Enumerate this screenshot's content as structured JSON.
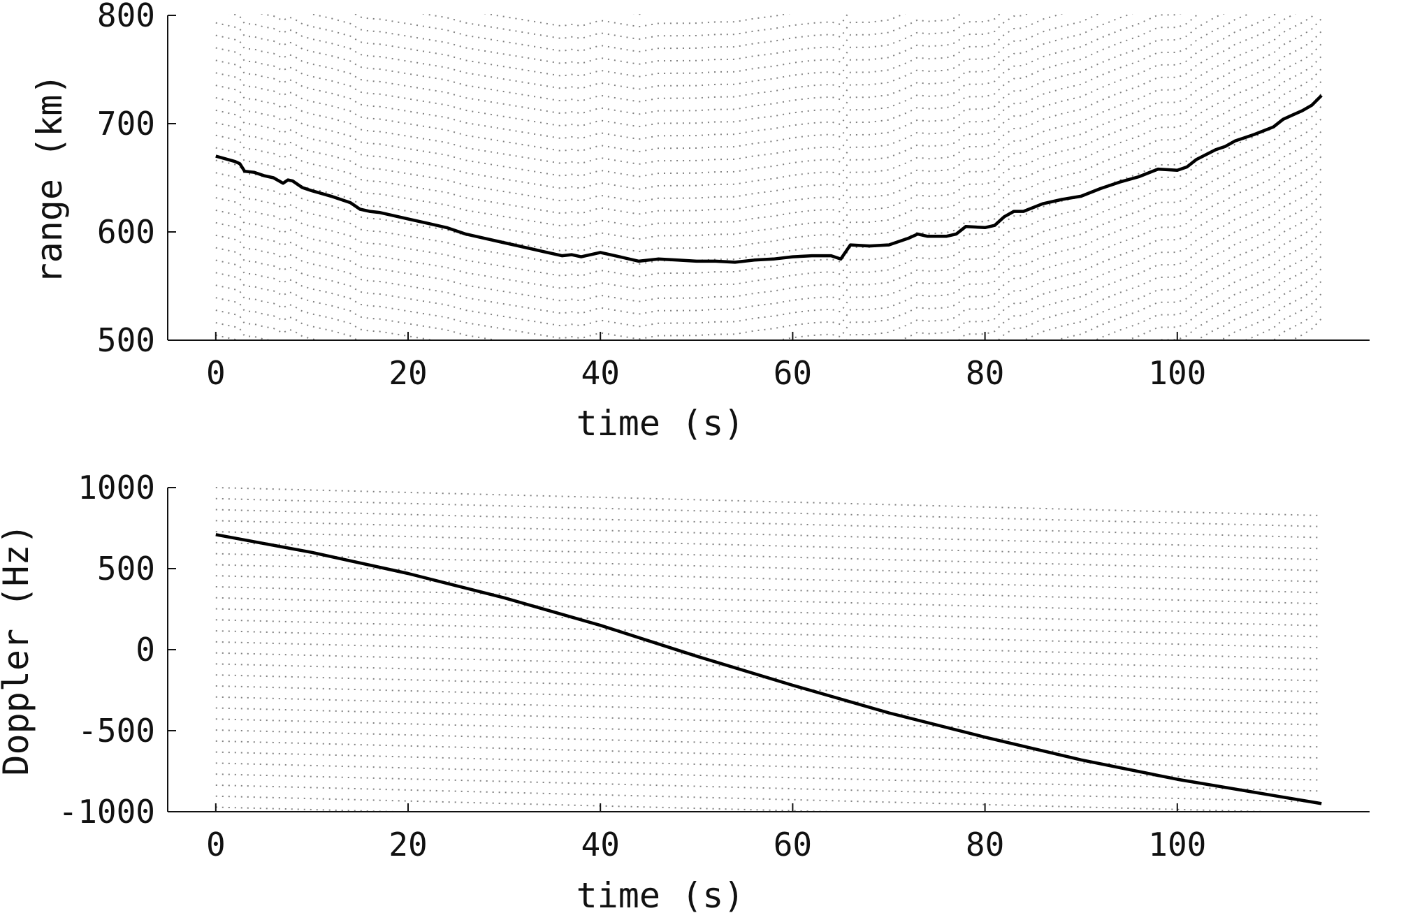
{
  "chart_data": [
    {
      "type": "line",
      "xlabel": "time (s)",
      "ylabel": "range (km)",
      "xlim": [
        -5,
        120
      ],
      "ylim": [
        500,
        800
      ],
      "x_ticks": [
        0,
        20,
        40,
        60,
        80,
        100
      ],
      "y_ticks": [
        500,
        600,
        700,
        800
      ],
      "x_tick_labels": [
        "0",
        "20",
        "40",
        "60",
        "80",
        "100"
      ],
      "y_tick_labels": [
        "500",
        "600",
        "700",
        "800"
      ],
      "grid": false,
      "series": [
        {
          "style": "solid",
          "color": "#000000",
          "x": [
            0,
            2,
            2.5,
            3,
            4,
            5,
            6,
            7,
            7.5,
            8,
            9,
            10,
            12,
            14,
            15,
            16,
            17,
            18,
            20,
            22,
            24,
            26,
            28,
            30,
            32,
            34,
            36,
            37,
            38,
            40,
            42,
            44,
            46,
            48,
            50,
            52,
            54,
            56,
            58,
            60,
            62,
            64,
            65,
            66,
            68,
            70,
            72,
            73,
            74,
            76,
            77,
            78,
            80,
            81,
            82,
            83,
            84,
            86,
            88,
            90,
            92,
            94,
            96,
            98,
            100,
            101,
            102,
            104,
            105,
            106,
            108,
            110,
            111,
            112,
            113,
            114,
            115
          ],
          "y": [
            670,
            665,
            663,
            656,
            655,
            652,
            650,
            645,
            648,
            647,
            641,
            638,
            633,
            627,
            621,
            619,
            618,
            616,
            612,
            608,
            604,
            598,
            594,
            590,
            586,
            582,
            578,
            579,
            577,
            581,
            577,
            573,
            575,
            574,
            573,
            573,
            572,
            574,
            575,
            577,
            578,
            578,
            575,
            588,
            587,
            588,
            594,
            598,
            596,
            596,
            598,
            605,
            604,
            606,
            614,
            619,
            619,
            626,
            630,
            633,
            640,
            646,
            651,
            658,
            657,
            660,
            667,
            676,
            679,
            684,
            690,
            697,
            704,
            708,
            712,
            717,
            726
          ]
        }
      ],
      "alias_bands": {
        "style": "dotted",
        "color": "#808080",
        "count": 30,
        "slope_per_s": 0.55,
        "curve_shape": "same as solid series"
      }
    },
    {
      "type": "line",
      "xlabel": "time (s)",
      "ylabel": "Doppler (Hz)",
      "xlim": [
        -5,
        120
      ],
      "ylim": [
        -1000,
        1000
      ],
      "x_ticks": [
        0,
        20,
        40,
        60,
        80,
        100
      ],
      "y_ticks": [
        -1000,
        -500,
        0,
        500,
        1000
      ],
      "x_tick_labels": [
        "0",
        "20",
        "40",
        "60",
        "80",
        "100"
      ],
      "y_tick_labels": [
        "-1000",
        "-500",
        "0",
        "500",
        "1000"
      ],
      "grid": false,
      "series": [
        {
          "style": "solid",
          "color": "#000000",
          "x": [
            0,
            10,
            20,
            30,
            40,
            50,
            60,
            70,
            80,
            90,
            100,
            110,
            115
          ],
          "y": [
            710,
            600,
            470,
            320,
            150,
            -40,
            -220,
            -390,
            -540,
            -680,
            -800,
            -900,
            -950
          ]
        }
      ],
      "alias_bands": {
        "style": "dotted",
        "color": "#808080",
        "spacing_hz": 68,
        "count": 30,
        "slope_per_s": -1.5
      }
    }
  ]
}
